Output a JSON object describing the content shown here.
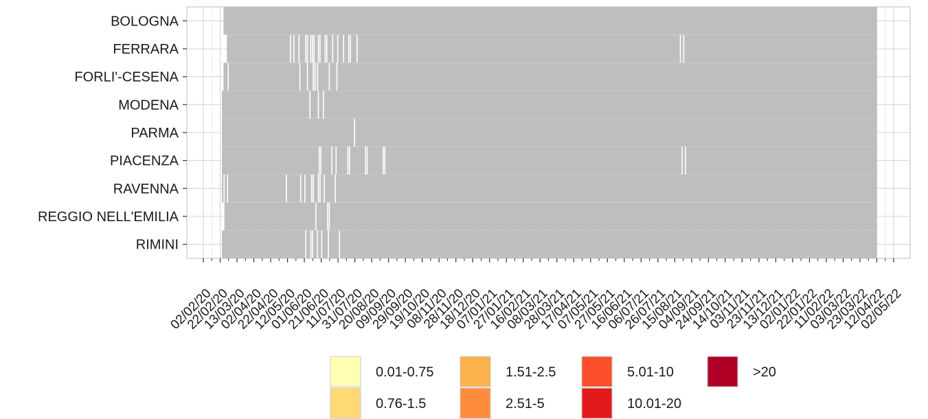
{
  "chart_data": {
    "type": "heatmap",
    "title": "",
    "xlabel": "",
    "ylabel": "",
    "x_ticks": [
      "02/02/20",
      "22/02/20",
      "13/03/20",
      "02/04/20",
      "22/04/20",
      "12/05/20",
      "01/06/20",
      "21/06/20",
      "11/07/20",
      "31/07/20",
      "20/08/20",
      "09/09/20",
      "29/09/20",
      "19/10/20",
      "08/11/20",
      "28/11/20",
      "18/12/20",
      "07/01/21",
      "27/01/21",
      "16/02/21",
      "08/03/21",
      "28/03/21",
      "17/04/21",
      "07/05/21",
      "27/05/21",
      "16/06/21",
      "06/07/21",
      "26/07/21",
      "15/08/21",
      "04/09/21",
      "24/09/21",
      "14/10/21",
      "03/11/21",
      "23/11/21",
      "13/12/21",
      "02/01/22",
      "22/01/22",
      "11/02/22",
      "03/03/22",
      "23/03/22",
      "12/04/22",
      "02/05/22"
    ],
    "categories": [
      "RIMINI",
      "REGGIO NELL'EMILIA",
      "RAVENNA",
      "PIACENZA",
      "PARMA",
      "MODENA",
      "FORLI'-CESENA",
      "FERRARA",
      "BOLOGNA"
    ],
    "rows": [
      {
        "name": "RIMINI",
        "start": "24/02/20",
        "end": "11/04/22",
        "gaps": [
          "02/06/20",
          "08/06/20",
          "10/06/20",
          "16/06/20",
          "21/06/20",
          "29/06/20",
          "12/07/20"
        ]
      },
      {
        "name": "REGGIO NELL'EMILIA",
        "start": "27/02/20",
        "end": "11/04/22",
        "gaps": [
          "14/06/20",
          "28/06/20",
          "30/06/20"
        ]
      },
      {
        "name": "RAVENNA",
        "start": "24/02/20",
        "end": "11/04/22",
        "gaps": [
          "26/02/20",
          "01/03/20",
          "10/05/20",
          "27/05/20",
          "01/06/20",
          "09/06/20",
          "11/06/20",
          "17/06/20",
          "19/06/20",
          "24/06/20",
          "07/07/20"
        ]
      },
      {
        "name": "PIACENZA",
        "start": "24/02/20",
        "end": "11/04/22",
        "gaps": [
          "18/06/20",
          "20/06/20",
          "03/07/20",
          "08/07/20",
          "22/07/20",
          "24/07/20",
          "12/08/20",
          "14/08/20",
          "02/09/20",
          "04/09/20",
          "23/08/21",
          "27/08/21"
        ]
      },
      {
        "name": "PARMA",
        "start": "24/02/20",
        "end": "11/04/22",
        "gaps": [
          "20/02/20",
          "30/07/20"
        ]
      },
      {
        "name": "MODENA",
        "start": "24/02/20",
        "end": "11/04/22",
        "gaps": [
          "20/02/20",
          "07/06/20",
          "17/06/20",
          "23/06/20"
        ]
      },
      {
        "name": "FORLI'-CESENA",
        "start": "26/02/20",
        "end": "11/04/22",
        "gaps": [
          "24/02/20",
          "02/03/20",
          "26/05/20",
          "04/06/20",
          "11/06/20",
          "13/06/20",
          "16/06/20",
          "30/06/20",
          "09/07/20"
        ]
      },
      {
        "name": "FERRARA",
        "start": "01/03/20",
        "end": "11/04/22",
        "gaps": [
          "25/02/20",
          "15/05/20",
          "19/05/20",
          "25/05/20",
          "02/06/20",
          "04/06/20",
          "08/06/20",
          "10/06/20",
          "12/06/20",
          "17/06/20",
          "19/06/20",
          "25/06/20",
          "27/06/20",
          "04/07/20",
          "10/07/20",
          "17/07/20",
          "23/07/20",
          "25/07/20",
          "02/08/20",
          "21/08/21",
          "25/08/21"
        ]
      },
      {
        "name": "BOLOGNA",
        "start": "26/02/20",
        "end": "11/04/22",
        "gaps": []
      }
    ],
    "fill_color": "#bebebe",
    "grid": true,
    "legend": {
      "placement": "bottom",
      "entries": [
        {
          "label": "0.01-0.75",
          "color": "#ffffb2"
        },
        {
          "label": "0.76-1.5",
          "color": "#fed976"
        },
        {
          "label": "1.51-2.5",
          "color": "#feb24c"
        },
        {
          "label": "2.51-5",
          "color": "#fd8d3c"
        },
        {
          "label": "5.01-10",
          "color": "#fc4e2a"
        },
        {
          "label": "10.01-20",
          "color": "#e31a1c"
        },
        {
          "label": ">20",
          "color": "#b10026"
        }
      ]
    }
  }
}
